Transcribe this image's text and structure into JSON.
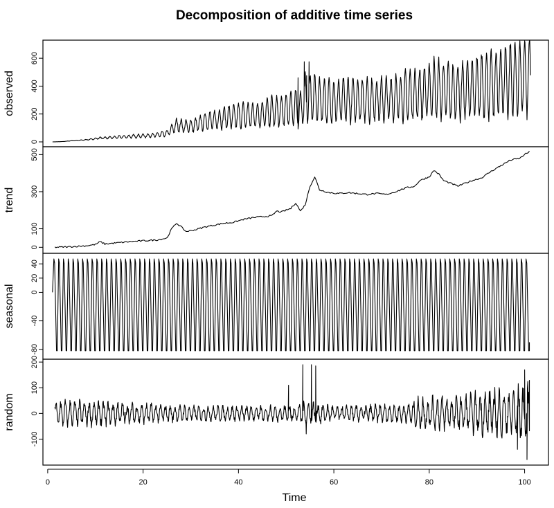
{
  "chart_data": {
    "type": "line",
    "title": "Decomposition of additive time series",
    "xlabel": "Time",
    "xlim": [
      -1,
      105
    ],
    "xticks": [
      0,
      20,
      40,
      60,
      80,
      100
    ],
    "x_start": 1,
    "x_end": 101.3,
    "frequency": 12,
    "grid": false,
    "panels": [
      {
        "name": "observed",
        "ylabel": "observed",
        "ylim": [
          -5,
          700
        ],
        "yticks": [
          0,
          200,
          400,
          600
        ],
        "kind": "observed",
        "points": [
          [
            1,
            0
          ],
          [
            3,
            2
          ],
          [
            5,
            8
          ],
          [
            7,
            12
          ],
          [
            9,
            18
          ],
          [
            11,
            28
          ],
          [
            13,
            30
          ],
          [
            15,
            35
          ],
          [
            17,
            38
          ],
          [
            19,
            42
          ],
          [
            21,
            45
          ],
          [
            23,
            50
          ],
          [
            25,
            60
          ],
          [
            27,
            120
          ],
          [
            29,
            110
          ],
          [
            31,
            120
          ],
          [
            33,
            150
          ],
          [
            35,
            155
          ],
          [
            37,
            175
          ],
          [
            39,
            180
          ],
          [
            41,
            190
          ],
          [
            43,
            190
          ],
          [
            45,
            200
          ],
          [
            47,
            220
          ],
          [
            49,
            215
          ],
          [
            51,
            245
          ],
          [
            53,
            235
          ],
          [
            54,
            310
          ],
          [
            55,
            320
          ],
          [
            57,
            300
          ],
          [
            59,
            290
          ],
          [
            61,
            295
          ],
          [
            63,
            300
          ],
          [
            65,
            300
          ],
          [
            67,
            305
          ],
          [
            69,
            300
          ],
          [
            71,
            305
          ],
          [
            73,
            315
          ],
          [
            75,
            330
          ],
          [
            77,
            340
          ],
          [
            79,
            350
          ],
          [
            81,
            380
          ],
          [
            83,
            370
          ],
          [
            85,
            360
          ],
          [
            87,
            370
          ],
          [
            89,
            380
          ],
          [
            91,
            400
          ],
          [
            93,
            410
          ],
          [
            95,
            430
          ],
          [
            97,
            445
          ],
          [
            99,
            460
          ],
          [
            101,
            470
          ]
        ],
        "seasonal_amplitude": [
          [
            1,
            0.1
          ],
          [
            20,
            0.35
          ],
          [
            40,
            0.5
          ],
          [
            54,
            0.6
          ],
          [
            70,
            0.55
          ],
          [
            80,
            0.6
          ],
          [
            90,
            0.62
          ],
          [
            101,
            0.65
          ]
        ],
        "spikes": [
          [
            52.5,
            460
          ],
          [
            53.8,
            575
          ],
          [
            54.3,
            475
          ],
          [
            54.8,
            575
          ]
        ]
      },
      {
        "name": "trend",
        "ylabel": "trend",
        "ylim": [
          -10,
          520
        ],
        "yticks": [
          0,
          100,
          300,
          500
        ],
        "kind": "trend",
        "points": [
          [
            1.5,
            0
          ],
          [
            4,
            2
          ],
          [
            6,
            5
          ],
          [
            8,
            8
          ],
          [
            10,
            15
          ],
          [
            11,
            30
          ],
          [
            12,
            18
          ],
          [
            15,
            25
          ],
          [
            17,
            30
          ],
          [
            20,
            35
          ],
          [
            23,
            40
          ],
          [
            25,
            50
          ],
          [
            26,
            100
          ],
          [
            27,
            130
          ],
          [
            28,
            110
          ],
          [
            29,
            85
          ],
          [
            31,
            95
          ],
          [
            33,
            110
          ],
          [
            35,
            120
          ],
          [
            37,
            130
          ],
          [
            39,
            135
          ],
          [
            41,
            150
          ],
          [
            43,
            160
          ],
          [
            45,
            165
          ],
          [
            47,
            170
          ],
          [
            48,
            195
          ],
          [
            49,
            190
          ],
          [
            51,
            210
          ],
          [
            52,
            240
          ],
          [
            53,
            195
          ],
          [
            54,
            230
          ],
          [
            55,
            330
          ],
          [
            56,
            380
          ],
          [
            57,
            310
          ],
          [
            59,
            295
          ],
          [
            61,
            290
          ],
          [
            63,
            295
          ],
          [
            65,
            290
          ],
          [
            67,
            285
          ],
          [
            69,
            290
          ],
          [
            71,
            285
          ],
          [
            73,
            300
          ],
          [
            75,
            320
          ],
          [
            77,
            330
          ],
          [
            78,
            360
          ],
          [
            79,
            370
          ],
          [
            80,
            380
          ],
          [
            81,
            415
          ],
          [
            82,
            395
          ],
          [
            83,
            360
          ],
          [
            85,
            340
          ],
          [
            86,
            330
          ],
          [
            87,
            340
          ],
          [
            89,
            360
          ],
          [
            91,
            375
          ],
          [
            93,
            410
          ],
          [
            95,
            440
          ],
          [
            97,
            470
          ],
          [
            99,
            480
          ],
          [
            100,
            500
          ],
          [
            101,
            515
          ]
        ]
      },
      {
        "name": "seasonal",
        "ylabel": "seasonal",
        "ylim": [
          -88,
          49
        ],
        "yticks": [
          40,
          20,
          0,
          -40,
          -80
        ],
        "kind": "seasonal",
        "points": [
          [
            1,
            0
          ],
          [
            1.3,
            47
          ],
          [
            2,
            -82
          ],
          [
            101,
            -70
          ]
        ]
      },
      {
        "name": "random",
        "ylabel": "random",
        "ylim": [
          -185,
          195
        ],
        "yticks": [
          200,
          100,
          0,
          -100
        ],
        "kind": "random",
        "points": [
          [
            1.5,
            -30
          ],
          [
            2,
            -45
          ],
          [
            3,
            75
          ],
          [
            101,
            80
          ]
        ],
        "amplitude": [
          [
            1.5,
            45
          ],
          [
            15,
            40
          ],
          [
            25,
            28
          ],
          [
            35,
            25
          ],
          [
            45,
            25
          ],
          [
            51,
            30
          ],
          [
            55,
            40
          ],
          [
            60,
            25
          ],
          [
            70,
            30
          ],
          [
            75,
            30
          ],
          [
            78,
            55
          ],
          [
            85,
            55
          ],
          [
            90,
            70
          ],
          [
            95,
            85
          ],
          [
            101,
            95
          ]
        ],
        "spikes": [
          [
            50.5,
            110
          ],
          [
            53.5,
            190
          ],
          [
            54.2,
            -80
          ],
          [
            55.3,
            190
          ],
          [
            56.2,
            185
          ],
          [
            98.5,
            -140
          ],
          [
            100,
            170
          ],
          [
            100.5,
            -180
          ],
          [
            101,
            130
          ]
        ]
      }
    ]
  }
}
